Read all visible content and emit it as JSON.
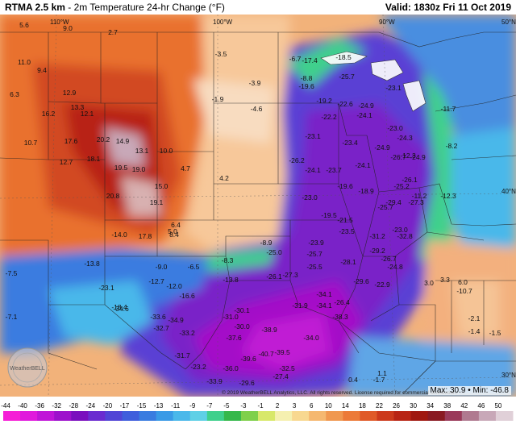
{
  "header": {
    "product": "RTMA 2.5 km",
    "title_rest": " - 2m Temperature 24-hr Change (°F)",
    "valid": "Valid: 1830z Fri 11 Oct 2019"
  },
  "longitude_labels": [
    "110°W",
    "100°W",
    "90°W",
    "50°N",
    "40°N",
    "30°N"
  ],
  "copyright": "© 2019 WeatherBELL Analytics, LLC. All rights reserved. License required for commercial distribution.",
  "logo_text": "WeatherBELL",
  "stats": {
    "max_label": "Max:",
    "max": "30.9",
    "min_label": "Min:",
    "min": "-46.8"
  },
  "colorbar": {
    "labels": [
      "-44",
      "-40",
      "-36",
      "-32",
      "-28",
      "-24",
      "-20",
      "-17",
      "-15",
      "-13",
      "-11",
      "-9",
      "-7",
      "-5",
      "-3",
      "-1",
      "2",
      "3",
      "6",
      "10",
      "14",
      "18",
      "22",
      "26",
      "30",
      "34",
      "38",
      "42",
      "46",
      "50"
    ],
    "colors": [
      "#f51ed6",
      "#e01adc",
      "#c015d8",
      "#9d11cc",
      "#7a0fbe",
      "#6a2cd0",
      "#5145d6",
      "#3f5edc",
      "#3a7ce0",
      "#3a9ae6",
      "#4ab8ea",
      "#5fd0e6",
      "#3fd08c",
      "#35b84a",
      "#7fd04a",
      "#d8e86a",
      "#f5f0b0",
      "#f8d890",
      "#f5b870",
      "#f09850",
      "#ec7a38",
      "#e05a28",
      "#cc3a1c",
      "#b82414",
      "#a01810",
      "#8a1a22",
      "#9a3a5a",
      "#b07a90",
      "#c8a8b8",
      "#e0d0d8"
    ]
  },
  "map_values": [
    {
      "t": "11.0",
      "c": "#111"
    },
    {
      "t": "9.4",
      "c": "#111"
    },
    {
      "t": "5.6",
      "c": "#111"
    },
    {
      "t": "9.0",
      "c": "#111"
    },
    {
      "t": "2.7",
      "c": "#111"
    },
    {
      "t": "6.3",
      "c": "#111"
    },
    {
      "t": "12.9",
      "c": "#111"
    },
    {
      "t": "13.3",
      "c": "#111"
    },
    {
      "t": "12.1",
      "c": "#111"
    },
    {
      "t": "16.2",
      "c": "#111"
    },
    {
      "t": "20.2",
      "c": "#111"
    },
    {
      "t": "14.9",
      "c": "#111"
    },
    {
      "t": "17.6",
      "c": "#111"
    },
    {
      "t": "13.1",
      "c": "#111"
    },
    {
      "t": "10.0",
      "c": "#111"
    },
    {
      "t": "18.1",
      "c": "#111"
    },
    {
      "t": "19.5",
      "c": "#111"
    },
    {
      "t": "19.0",
      "c": "#111"
    },
    {
      "t": "15.0",
      "c": "#111"
    },
    {
      "t": "20.8",
      "c": "#111"
    },
    {
      "t": "19.1",
      "c": "#111"
    },
    {
      "t": "17.8",
      "c": "#111"
    },
    {
      "t": "8.4",
      "c": "#111"
    },
    {
      "t": "10.7",
      "c": "#111"
    },
    {
      "t": "12.7",
      "c": "#111"
    },
    {
      "t": "4.7",
      "c": "#111"
    },
    {
      "t": "4.2",
      "c": "#111"
    },
    {
      "t": "6.4",
      "c": "#111"
    },
    {
      "t": "5.0",
      "c": "#111"
    },
    {
      "t": "-1.9",
      "c": "#111"
    },
    {
      "t": "-3.5",
      "c": "#111"
    },
    {
      "t": "-3.9",
      "c": "#111"
    },
    {
      "t": "-4.6",
      "c": "#111"
    },
    {
      "t": "-6.7",
      "c": "#111"
    },
    {
      "t": "-17.4",
      "c": "#111"
    },
    {
      "t": "-8.8",
      "c": "#111"
    },
    {
      "t": "-19.6",
      "c": "#111"
    },
    {
      "t": "-18.5",
      "c": "#111"
    },
    {
      "t": "-25.7",
      "c": "#111"
    },
    {
      "t": "-23.1",
      "c": "#111"
    },
    {
      "t": "-19.2",
      "c": "#111"
    },
    {
      "t": "-22.6",
      "c": "#111"
    },
    {
      "t": "-24.9",
      "c": "#111"
    },
    {
      "t": "-22.2",
      "c": "#111"
    },
    {
      "t": "-24.1",
      "c": "#111"
    },
    {
      "t": "-23.0",
      "c": "#111"
    },
    {
      "t": "-23.1",
      "c": "#111"
    },
    {
      "t": "-23.4",
      "c": "#111"
    },
    {
      "t": "-24.9",
      "c": "#111"
    },
    {
      "t": "-24.3",
      "c": "#111"
    },
    {
      "t": "-26.2",
      "c": "#111"
    },
    {
      "t": "-24.1",
      "c": "#111"
    },
    {
      "t": "-23.7",
      "c": "#111"
    },
    {
      "t": "-24.1",
      "c": "#111"
    },
    {
      "t": "-26.7",
      "c": "#111"
    },
    {
      "t": "-24.9",
      "c": "#111"
    },
    {
      "t": "-19.6",
      "c": "#111"
    },
    {
      "t": "-18.9",
      "c": "#111"
    },
    {
      "t": "-25.2",
      "c": "#111"
    },
    {
      "t": "-26.1",
      "c": "#111"
    },
    {
      "t": "-23.0",
      "c": "#111"
    },
    {
      "t": "-19.5",
      "c": "#111"
    },
    {
      "t": "-21.5",
      "c": "#111"
    },
    {
      "t": "-25.7",
      "c": "#111"
    },
    {
      "t": "-29.4",
      "c": "#111"
    },
    {
      "t": "-27.3",
      "c": "#111"
    },
    {
      "t": "-23.0",
      "c": "#111"
    },
    {
      "t": "-23.5",
      "c": "#111"
    },
    {
      "t": "-31.2",
      "c": "#111"
    },
    {
      "t": "-32.8",
      "c": "#111"
    },
    {
      "t": "-23.9",
      "c": "#111"
    },
    {
      "t": "-25.0",
      "c": "#111"
    },
    {
      "t": "-25.7",
      "c": "#111"
    },
    {
      "t": "-29.2",
      "c": "#111"
    },
    {
      "t": "-26.7",
      "c": "#111"
    },
    {
      "t": "-28.1",
      "c": "#111"
    },
    {
      "t": "-24.8",
      "c": "#111"
    },
    {
      "t": "-26.1",
      "c": "#111"
    },
    {
      "t": "-27.3",
      "c": "#111"
    },
    {
      "t": "-25.5",
      "c": "#111"
    },
    {
      "t": "-29.6",
      "c": "#111"
    },
    {
      "t": "-22.9",
      "c": "#111"
    },
    {
      "t": "-34.1",
      "c": "#111"
    },
    {
      "t": "-26.4",
      "c": "#111"
    },
    {
      "t": "-31.9",
      "c": "#111"
    },
    {
      "t": "-34.1",
      "c": "#111"
    },
    {
      "t": "-30.1",
      "c": "#111"
    },
    {
      "t": "-34.6",
      "c": "#111"
    },
    {
      "t": "-33.6",
      "c": "#111"
    },
    {
      "t": "-34.9",
      "c": "#111"
    },
    {
      "t": "-31.0",
      "c": "#111"
    },
    {
      "t": "-30.0",
      "c": "#111"
    },
    {
      "t": "-38.3",
      "c": "#111"
    },
    {
      "t": "-32.7",
      "c": "#111"
    },
    {
      "t": "-33.2",
      "c": "#111"
    },
    {
      "t": "-37.6",
      "c": "#111"
    },
    {
      "t": "-38.9",
      "c": "#111"
    },
    {
      "t": "-34.0",
      "c": "#111"
    },
    {
      "t": "-40.7",
      "c": "#111"
    },
    {
      "t": "-39.5",
      "c": "#111"
    },
    {
      "t": "-31.7",
      "c": "#111"
    },
    {
      "t": "-39.6",
      "c": "#111"
    },
    {
      "t": "-32.5",
      "c": "#111"
    },
    {
      "t": "-23.2",
      "c": "#111"
    },
    {
      "t": "-36.0",
      "c": "#111"
    },
    {
      "t": "-29.6",
      "c": "#111"
    },
    {
      "t": "-33.9",
      "c": "#111"
    },
    {
      "t": "-27.4",
      "c": "#111"
    },
    {
      "t": "-12.3",
      "c": "#111"
    },
    {
      "t": "-11.7",
      "c": "#111"
    },
    {
      "t": "-7.5",
      "c": "#111"
    },
    {
      "t": "-13.8",
      "c": "#111"
    },
    {
      "t": "-12.7",
      "c": "#111"
    },
    {
      "t": "-16.6",
      "c": "#111"
    },
    {
      "t": "-13.8",
      "c": "#111"
    },
    {
      "t": "-23.1",
      "c": "#111"
    },
    {
      "t": "-18.4",
      "c": "#111"
    },
    {
      "t": "-14.0",
      "c": "#111"
    },
    {
      "t": "-8.9",
      "c": "#111"
    },
    {
      "t": "-8.3",
      "c": "#111"
    },
    {
      "t": "-6.5",
      "c": "#111"
    },
    {
      "t": "-9.0",
      "c": "#111"
    },
    {
      "t": "-12.0",
      "c": "#111"
    },
    {
      "t": "-12.3",
      "c": "#111"
    },
    {
      "t": "-11.2",
      "c": "#111"
    },
    {
      "t": "-10.7",
      "c": "#111"
    },
    {
      "t": "-7.1",
      "c": "#111"
    },
    {
      "t": "-8.2",
      "c": "#111"
    },
    {
      "t": "3.0",
      "c": "#111"
    },
    {
      "t": "3.3",
      "c": "#111"
    },
    {
      "t": "6.0",
      "c": "#111"
    },
    {
      "t": "-2.1",
      "c": "#111"
    },
    {
      "t": "-1.4",
      "c": "#111"
    },
    {
      "t": "-1.5",
      "c": "#111"
    },
    {
      "t": "-1.7",
      "c": "#111"
    },
    {
      "t": "0.4",
      "c": "#111"
    },
    {
      "t": "1.1",
      "c": "#111"
    }
  ]
}
